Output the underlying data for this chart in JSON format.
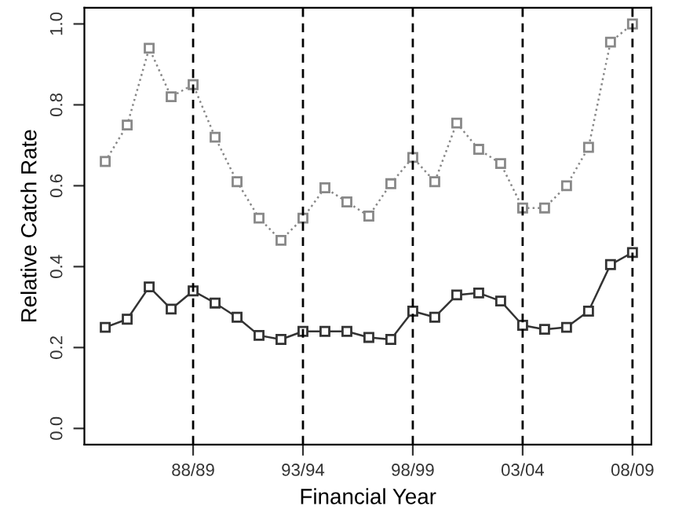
{
  "chart_data": {
    "type": "line",
    "xlabel": "Financial Year",
    "ylabel": "Relative Catch Rate",
    "categories": [
      null,
      null,
      null,
      null,
      "88/89",
      null,
      null,
      null,
      null,
      "93/94",
      null,
      null,
      null,
      null,
      "98/99",
      null,
      null,
      null,
      null,
      "03/04",
      null,
      null,
      null,
      null,
      "08/09"
    ],
    "series": [
      {
        "color": "#888888",
        "line_style": "dotted",
        "values": [
          0.66,
          0.75,
          0.94,
          0.82,
          0.85,
          0.72,
          0.61,
          0.52,
          0.465,
          0.52,
          0.595,
          0.56,
          0.525,
          0.605,
          0.67,
          0.61,
          0.755,
          0.69,
          0.655,
          0.545,
          0.545,
          0.6,
          0.695,
          0.955,
          1.0
        ]
      },
      {
        "color": "#333333",
        "line_style": "solid",
        "values": [
          0.25,
          0.27,
          0.35,
          0.295,
          0.34,
          0.31,
          0.275,
          0.23,
          0.22,
          0.24,
          0.24,
          0.24,
          0.225,
          0.22,
          0.29,
          0.275,
          0.33,
          0.335,
          0.315,
          0.255,
          0.245,
          0.25,
          0.29,
          0.405,
          0.435
        ]
      }
    ],
    "marker": "square",
    "ylim": [
      -0.04,
      1.04
    ],
    "yticks": [
      {
        "value": 0,
        "label": "0.0"
      },
      {
        "value": 0.2,
        "label": "0.2"
      },
      {
        "value": 0.4,
        "label": "0.4"
      },
      {
        "value": 0.6,
        "label": "0.6"
      },
      {
        "value": 0.8,
        "label": "0.8"
      },
      {
        "value": 1,
        "label": "1.0"
      }
    ],
    "ref_lines": [
      {
        "axis": "x",
        "value": "88/89",
        "color": "#000000",
        "line_style": "dashed"
      },
      {
        "axis": "x",
        "value": "93/94",
        "color": "#000000",
        "line_style": "dashed"
      },
      {
        "axis": "x",
        "value": "98/99",
        "color": "#000000",
        "line_style": "dashed"
      },
      {
        "axis": "x",
        "value": "03/04",
        "color": "#000000",
        "line_style": "dashed"
      },
      {
        "axis": "x",
        "value": "08/09",
        "color": "#000000",
        "line_style": "dashed"
      }
    ],
    "grid": false,
    "legend": false
  }
}
